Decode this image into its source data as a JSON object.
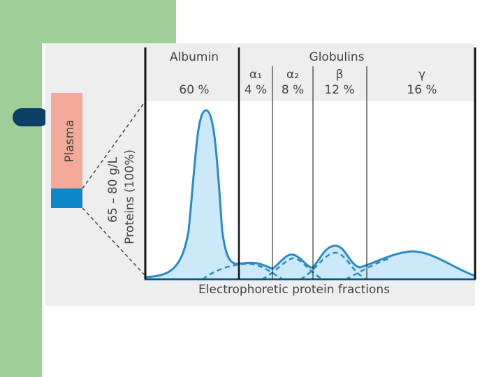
{
  "figure": {
    "header": {
      "albumin": "Albumin",
      "globulins": "Globulins"
    },
    "fractions": [
      {
        "symbol": "α₁",
        "percent": "4 %"
      },
      {
        "symbol": "α₂",
        "percent": "8 %"
      },
      {
        "symbol": "β",
        "percent": "12 %"
      },
      {
        "symbol": "γ",
        "percent": "16 %"
      }
    ],
    "albumin_percent": "60 %",
    "plasma": "Plasma",
    "concentration": "65 – 80 g/L",
    "proteins": "Proteins (100%)",
    "caption": "Electrophoretic protein fractions"
  }
}
